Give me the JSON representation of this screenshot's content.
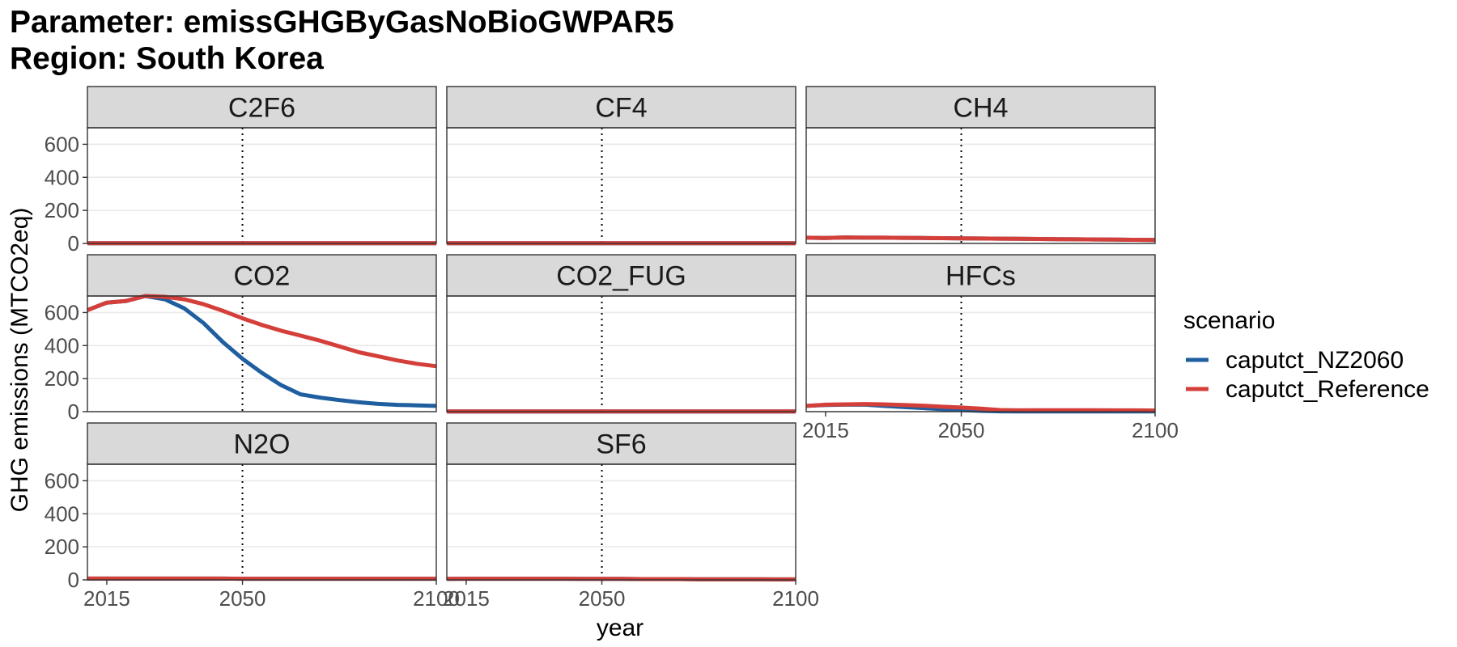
{
  "chart_data": {
    "type": "line",
    "title": "Parameter: emissGHGByGasNoBioGWPAR5",
    "subtitle": "Region: South Korea",
    "xlabel": "year",
    "ylabel": "GHG emissions (MTCO2eq)",
    "xlim": [
      2010,
      2100
    ],
    "ylim": [
      0,
      700
    ],
    "x_ticks": [
      2015,
      2050,
      2100
    ],
    "y_ticks": [
      0,
      200,
      400,
      600
    ],
    "reference_x": 2050,
    "grid": true,
    "legend": {
      "title": "scenario",
      "position": "right"
    },
    "series_styles": [
      {
        "name": "caputct_NZ2060",
        "color": "#1f5fa0"
      },
      {
        "name": "caputct_Reference",
        "color": "#d43f3a"
      }
    ],
    "x": [
      2010,
      2015,
      2020,
      2025,
      2030,
      2035,
      2040,
      2045,
      2050,
      2055,
      2060,
      2065,
      2070,
      2075,
      2080,
      2085,
      2090,
      2095,
      2100
    ],
    "panels": [
      {
        "name": "C2F6",
        "series": [
          {
            "name": "caputct_NZ2060",
            "values": [
              1,
              1,
              1,
              1,
              1,
              1,
              1,
              1,
              1,
              1,
              1,
              1,
              1,
              1,
              1,
              1,
              1,
              1,
              1
            ]
          },
          {
            "name": "caputct_Reference",
            "values": [
              1,
              1,
              1,
              1,
              1,
              1,
              1,
              1,
              1,
              1,
              1,
              1,
              1,
              1,
              1,
              1,
              1,
              1,
              1
            ]
          }
        ]
      },
      {
        "name": "CF4",
        "series": [
          {
            "name": "caputct_NZ2060",
            "values": [
              1,
              1,
              1,
              1,
              1,
              1,
              1,
              1,
              1,
              1,
              1,
              1,
              1,
              1,
              1,
              1,
              1,
              1,
              1
            ]
          },
          {
            "name": "caputct_Reference",
            "values": [
              1,
              1,
              1,
              1,
              1,
              1,
              1,
              1,
              1,
              1,
              1,
              1,
              1,
              1,
              1,
              1,
              1,
              1,
              1
            ]
          }
        ]
      },
      {
        "name": "CH4",
        "series": [
          {
            "name": "caputct_NZ2060",
            "values": [
              35,
              33,
              36,
              35,
              35,
              34,
              33,
              32,
              31,
              30,
              29,
              28,
              27,
              26,
              25,
              24,
              23,
              22,
              21
            ]
          },
          {
            "name": "caputct_Reference",
            "values": [
              35,
              33,
              36,
              35,
              35,
              34,
              33,
              32,
              31,
              30,
              29,
              28,
              27,
              26,
              25,
              24,
              23,
              22,
              21
            ]
          }
        ]
      },
      {
        "name": "CO2",
        "series": [
          {
            "name": "caputct_NZ2060",
            "values": [
              615,
              660,
              670,
              700,
              680,
              625,
              535,
              420,
              320,
              235,
              160,
              105,
              85,
              70,
              57,
              47,
              41,
              38,
              35
            ]
          },
          {
            "name": "caputct_Reference",
            "values": [
              615,
              660,
              670,
              700,
              695,
              680,
              650,
              610,
              565,
              525,
              490,
              460,
              430,
              395,
              360,
              335,
              310,
              290,
              275
            ]
          }
        ]
      },
      {
        "name": "CO2_FUG",
        "series": [
          {
            "name": "caputct_NZ2060",
            "values": [
              1,
              1,
              1,
              1,
              1,
              1,
              1,
              1,
              1,
              1,
              1,
              1,
              1,
              1,
              1,
              1,
              1,
              1,
              1
            ]
          },
          {
            "name": "caputct_Reference",
            "values": [
              1,
              1,
              1,
              1,
              1,
              1,
              1,
              1,
              1,
              1,
              1,
              1,
              1,
              1,
              1,
              1,
              1,
              1,
              1
            ]
          }
        ]
      },
      {
        "name": "HFCs",
        "series": [
          {
            "name": "caputct_NZ2060",
            "values": [
              35,
              40,
              42,
              43,
              35,
              28,
              22,
              15,
              10,
              5,
              2,
              1,
              1,
              1,
              1,
              1,
              1,
              1,
              1
            ]
          },
          {
            "name": "caputct_Reference",
            "values": [
              35,
              42,
              44,
              46,
              44,
              40,
              36,
              30,
              25,
              18,
              10,
              8,
              9,
              9,
              9,
              9,
              8,
              8,
              7
            ]
          }
        ]
      },
      {
        "name": "N2O",
        "series": [
          {
            "name": "caputct_NZ2060",
            "values": [
              8,
              8,
              8,
              8,
              8,
              8,
              8,
              8,
              7,
              7,
              7,
              7,
              7,
              7,
              7,
              7,
              7,
              7,
              7
            ]
          },
          {
            "name": "caputct_Reference",
            "values": [
              8,
              8,
              8,
              8,
              8,
              8,
              8,
              8,
              7,
              7,
              7,
              7,
              7,
              7,
              7,
              7,
              7,
              7,
              7
            ]
          }
        ]
      },
      {
        "name": "SF6",
        "series": [
          {
            "name": "caputct_NZ2060",
            "values": [
              6,
              7,
              7,
              7,
              7,
              7,
              7,
              6,
              6,
              6,
              5,
              5,
              5,
              4,
              4,
              4,
              4,
              3,
              3
            ]
          },
          {
            "name": "caputct_Reference",
            "values": [
              6,
              7,
              7,
              7,
              7,
              7,
              7,
              6,
              6,
              6,
              5,
              5,
              5,
              4,
              4,
              4,
              4,
              3,
              3
            ]
          }
        ]
      }
    ]
  }
}
